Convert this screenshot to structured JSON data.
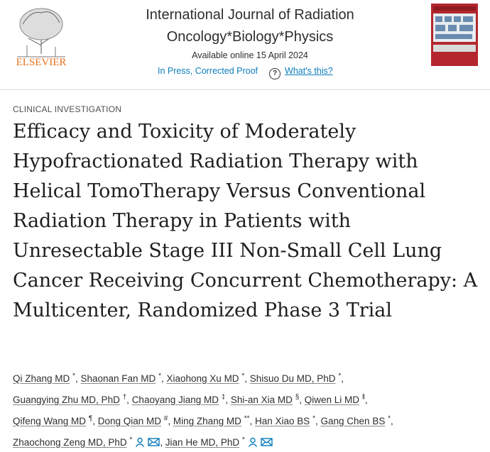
{
  "header": {
    "publisher": "ELSEVIER",
    "journal": "International Journal of Radiation Oncology*Biology*Physics",
    "availability": "Available online 15 April 2024",
    "status": "In Press, Corrected Proof",
    "help_icon": "?",
    "help": "What's this?"
  },
  "article": {
    "type": "CLINICAL INVESTIGATION",
    "title": "Efficacy and Toxicity of Moderately Hypofractionated Radiation Therapy with Helical TomoTherapy Versus Conventional Radiation Therapy in Patients with Unresectable Stage III Non-Small Cell Lung Cancer Receiving Concurrent Chemotherapy: A Multicenter, Randomized Phase 3 Trial",
    "authors": [
      {
        "name": "Qi Zhang MD",
        "note": "*",
        "sep": ","
      },
      {
        "name": "Shaonan Fan MD",
        "note": "*",
        "sep": ","
      },
      {
        "name": "Xiaohong Xu MD",
        "note": "*",
        "sep": ","
      },
      {
        "name": "Shisuo Du MD, PhD",
        "note": "*",
        "sep": ","
      },
      {
        "name": "Guangying Zhu MD, PhD",
        "note": "†",
        "sep": ","
      },
      {
        "name": "Chaoyang Jiang MD",
        "note": "‡",
        "sep": ","
      },
      {
        "name": "Shi-an Xia MD",
        "note": "§",
        "sep": ","
      },
      {
        "name": "Qiwen Li MD",
        "note": "‖",
        "sep": ","
      },
      {
        "name": "Qifeng Wang MD",
        "note": "¶",
        "sep": ","
      },
      {
        "name": "Dong Qian MD",
        "note": "#",
        "sep": ","
      },
      {
        "name": "Ming Zhang MD",
        "note": "**",
        "sep": ","
      },
      {
        "name": "Han Xiao BS",
        "note": "*",
        "sep": ","
      },
      {
        "name": "Gang Chen BS",
        "note": "*",
        "sep": ","
      },
      {
        "name": "Zhaochong Zeng MD, PhD",
        "note": "*",
        "sep": ","
      },
      {
        "name": "Jian He MD, PhD",
        "note": "*"
      }
    ]
  }
}
